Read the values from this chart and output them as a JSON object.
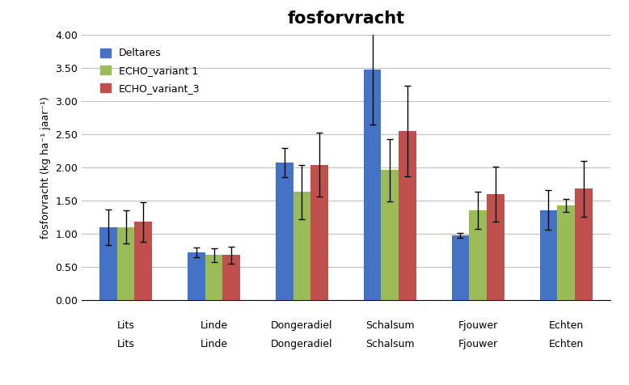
{
  "title": "fosforvracht",
  "ylabel": "fosforvracht (kg ha⁻¹ jaar⁻¹)",
  "categories": [
    "Lits",
    "Linde",
    "Dongeradiel",
    "Schalsum",
    "Fjouwer",
    "Echten"
  ],
  "xlabels_top": [
    "Lits",
    "Linde",
    "Dongeradiel",
    "Schalsum",
    "Fjouwer",
    "Echten"
  ],
  "xlabels_bottom": [
    "Lits",
    "Linde",
    "Dongeradiel",
    "Schalsum",
    "Fjouwer",
    "Echten"
  ],
  "series": {
    "Deltares": {
      "values": [
        1.1,
        0.72,
        2.07,
        3.47,
        0.98,
        1.36
      ],
      "errors": [
        0.27,
        0.07,
        0.22,
        0.82,
        0.04,
        0.3
      ],
      "color": "#4472C4"
    },
    "ECHO_variant 1": {
      "values": [
        1.1,
        0.68,
        1.63,
        1.96,
        1.35,
        1.43
      ],
      "errors": [
        0.25,
        0.1,
        0.41,
        0.47,
        0.28,
        0.1
      ],
      "color": "#9BBB59"
    },
    "ECHO_variant_3": {
      "values": [
        1.18,
        0.68,
        2.04,
        2.55,
        1.6,
        1.68
      ],
      "errors": [
        0.3,
        0.13,
        0.48,
        0.68,
        0.41,
        0.42
      ],
      "color": "#C0504D"
    }
  },
  "ylim": [
    0.0,
    4.0
  ],
  "yticks": [
    0.0,
    0.5,
    1.0,
    1.5,
    2.0,
    2.5,
    3.0,
    3.5,
    4.0
  ],
  "background_color": "#FFFFFF",
  "plot_bg_color": "#FFFFFF",
  "grid_color": "#C0C0C0"
}
